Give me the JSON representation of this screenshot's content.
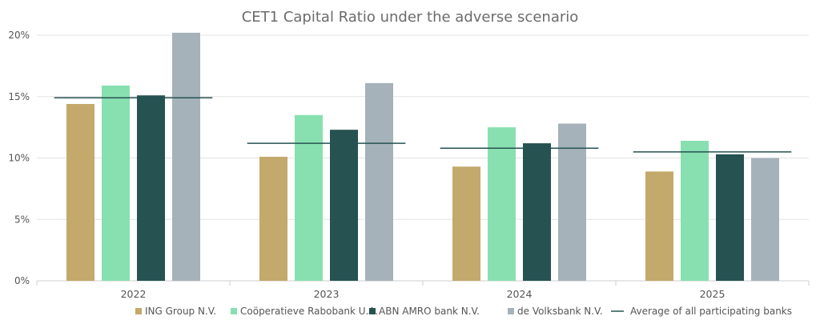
{
  "chart_data": {
    "type": "bar",
    "title": "CET1 Capital Ratio under the adverse scenario",
    "categories": [
      "2022",
      "2023",
      "2024",
      "2025"
    ],
    "series": [
      {
        "name": "ING Group N.V.",
        "color": "#c3a96b",
        "values": [
          14.4,
          10.1,
          9.3,
          8.9
        ]
      },
      {
        "name": "Coöperatieve Rabobank U.A.",
        "color": "#88e0b0",
        "values": [
          15.9,
          13.5,
          12.5,
          11.4
        ]
      },
      {
        "name": "ABN AMRO bank N.V.",
        "color": "#265252",
        "values": [
          15.1,
          12.3,
          11.2,
          10.3
        ]
      },
      {
        "name": "de Volksbank N.V.",
        "color": "#a5b2b9",
        "values": [
          20.2,
          16.1,
          12.8,
          10.0
        ]
      }
    ],
    "average": {
      "name": "Average of all participating banks",
      "color": "#265252",
      "values": [
        14.9,
        11.2,
        10.8,
        10.5
      ]
    },
    "ylim": [
      0,
      20
    ],
    "yticks": [
      "0%",
      "5%",
      "10%",
      "15%",
      "20%"
    ],
    "grid": true,
    "legend_position": "bottom",
    "xlabel": "",
    "ylabel": ""
  }
}
